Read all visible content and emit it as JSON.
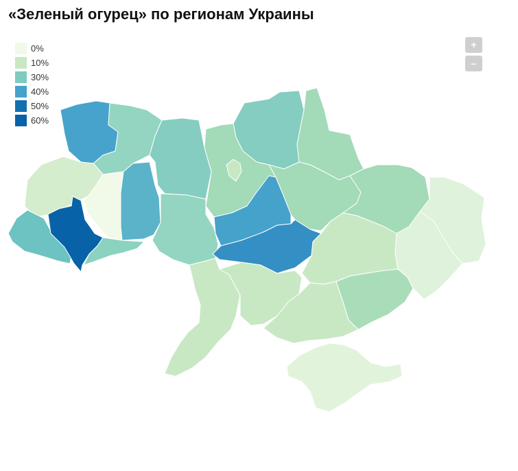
{
  "title": "«Зеленый огурец» по регионам Украины",
  "legend": [
    {
      "label": "0%",
      "color": "#f1f9e8"
    },
    {
      "label": "10%",
      "color": "#c8e8c4"
    },
    {
      "label": "30%",
      "color": "#7fcbbf"
    },
    {
      "label": "40%",
      "color": "#45a2cb"
    },
    {
      "label": "50%",
      "color": "#1270b0"
    },
    {
      "label": "60%",
      "color": "#0862a7"
    }
  ],
  "zoom": {
    "in_label": "+",
    "out_label": "–"
  },
  "regions": [
    {
      "id": "volyn",
      "bucket": "40%",
      "color": "#47a3cc"
    },
    {
      "id": "rivne",
      "bucket": "30%",
      "color": "#93d5c0"
    },
    {
      "id": "zhytomyr",
      "bucket": "30%",
      "color": "#84cdc0"
    },
    {
      "id": "kyiv",
      "bucket": "10%",
      "color": "#a3dab8"
    },
    {
      "id": "kyiv-city",
      "bucket": "10%",
      "color": "#c8e8c4"
    },
    {
      "id": "chernihiv",
      "bucket": "30%",
      "color": "#84cdc0"
    },
    {
      "id": "sumy",
      "bucket": "10%",
      "color": "#a3dab8"
    },
    {
      "id": "kharkiv",
      "bucket": "10%",
      "color": "#a3dab8"
    },
    {
      "id": "luhansk",
      "bucket": "0%",
      "color": "#dff2db"
    },
    {
      "id": "donetsk",
      "bucket": "0%",
      "color": "#dff2db"
    },
    {
      "id": "lviv",
      "bucket": "10%",
      "color": "#d4edcc"
    },
    {
      "id": "ternopil",
      "bucket": "0%",
      "color": "#f1f9e8"
    },
    {
      "id": "khmelnytskyi",
      "bucket": "40%",
      "color": "#5ab3c9"
    },
    {
      "id": "zakarpattia",
      "bucket": "30%",
      "color": "#6dc2c2"
    },
    {
      "id": "ivano-frankivsk",
      "bucket": "60%",
      "color": "#0862a7"
    },
    {
      "id": "chernivtsi",
      "bucket": "30%",
      "color": "#8bd2c0"
    },
    {
      "id": "vinnytsia",
      "bucket": "30%",
      "color": "#93d5c0"
    },
    {
      "id": "cherkasy",
      "bucket": "40%",
      "color": "#45a2cb"
    },
    {
      "id": "poltava",
      "bucket": "30%",
      "color": "#a3dab8"
    },
    {
      "id": "kirovohrad",
      "bucket": "40%",
      "color": "#348fc4"
    },
    {
      "id": "dnipropetrovsk",
      "bucket": "10%",
      "color": "#c8e8c4"
    },
    {
      "id": "zaporizhzhia",
      "bucket": "10%",
      "color": "#a9ddb9"
    },
    {
      "id": "odesa",
      "bucket": "10%",
      "color": "#c8e8c4"
    },
    {
      "id": "mykolaiv",
      "bucket": "10%",
      "color": "#c8e8c4"
    },
    {
      "id": "kherson",
      "bucket": "10%",
      "color": "#c8e8c4"
    },
    {
      "id": "crimea",
      "bucket": "0%",
      "color": "#e2f3dc"
    }
  ]
}
